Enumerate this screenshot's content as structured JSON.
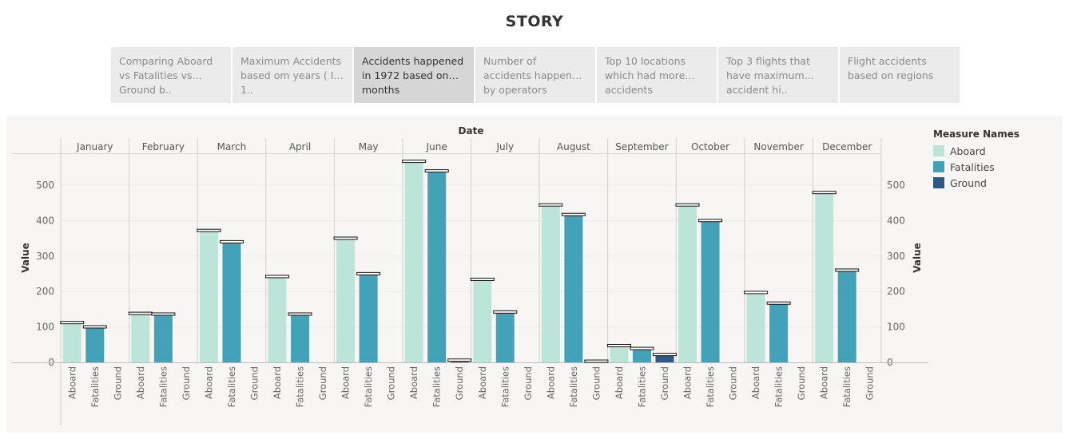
{
  "story": {
    "title": "STORY"
  },
  "tabs": [
    {
      "label": "Comparing Aboard vs Fatalities vs Ground b..",
      "active": false
    },
    {
      "label": "Maximum Accidents based om years ( In 1..",
      "active": false
    },
    {
      "label": "Accidents happened in 1972 based on months",
      "active": true
    },
    {
      "label": "Number of accidents happened by operators",
      "active": false
    },
    {
      "label": "Top 10 locations which had more accidents",
      "active": false
    },
    {
      "label": "Top 3 flights that have maximum accident hi..",
      "active": false
    },
    {
      "label": "Flight accidents based on regions",
      "active": false
    }
  ],
  "legend": {
    "title": "Measure Names",
    "items": [
      {
        "name": "Aboard",
        "color": "#bce4d8"
      },
      {
        "name": "Fatalities",
        "color": "#43a2b8"
      },
      {
        "name": "Ground",
        "color": "#2c5985"
      }
    ]
  },
  "chart_data": {
    "type": "bar",
    "xlabel": "Date",
    "ylabel": "Value",
    "ylim": [
      0,
      590
    ],
    "yticks": [
      0,
      100,
      200,
      300,
      400,
      500
    ],
    "categories": [
      "January",
      "February",
      "March",
      "April",
      "May",
      "June",
      "July",
      "August",
      "September",
      "October",
      "November",
      "December"
    ],
    "measures": [
      "Aboard",
      "Fatalities",
      "Ground"
    ],
    "series": [
      {
        "name": "Aboard",
        "values": [
          110,
          136,
          370,
          240,
          348,
          565,
          232,
          442,
          45,
          442,
          195,
          477
        ]
      },
      {
        "name": "Fatalities",
        "values": [
          98,
          134,
          338,
          134,
          248,
          538,
          140,
          415,
          37,
          398,
          165,
          258
        ]
      },
      {
        "name": "Ground",
        "values": [
          0,
          0,
          0,
          0,
          0,
          4,
          0,
          1,
          20,
          0,
          0,
          0
        ]
      }
    ],
    "grid": true,
    "legend": "right"
  }
}
